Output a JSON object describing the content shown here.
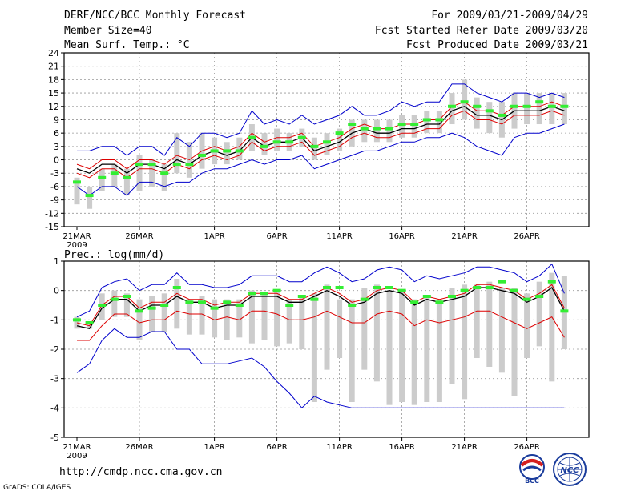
{
  "header": {
    "title": "DERF/NCC/BCC Monthly Forecast",
    "member_size": "Member Size=40",
    "variable": "Mean Surf. Temp.: °C",
    "period": "For 2009/03/21-2009/04/29",
    "fcst_start": "Fcst Started Refer Date 2009/03/20",
    "fcst_produced": "Fcst Produced Date 2009/03/21"
  },
  "footer": {
    "url": "http://cmdp.ncc.cma.gov.cn",
    "credit": "GrADS: COLA/IGES",
    "logos": [
      "BCC",
      "NCC"
    ]
  },
  "colors": {
    "bar": "#cccccc",
    "mean": "#000000",
    "spread_red": "#dd0000",
    "envelope_blue": "#0000cc",
    "green_marker": "#33ee33",
    "grid": "#999999"
  },
  "chart_data": [
    {
      "type": "line",
      "name": "temperature",
      "title": "Mean Surf. Temp.: °C",
      "ylim": [
        -15,
        24
      ],
      "yticks": [
        -15,
        -12,
        -9,
        -6,
        -3,
        0,
        3,
        6,
        9,
        12,
        15,
        18,
        21,
        24
      ],
      "ytick_labels": [
        "-15",
        "-12",
        "-9",
        "-6",
        "-3",
        "0",
        "3",
        "6",
        "9",
        "12",
        "15",
        "18",
        "21",
        "24"
      ],
      "x_tick_days": [
        0,
        5,
        11,
        16,
        21,
        26,
        31,
        36
      ],
      "x_tick_labels": [
        "21MAR",
        "26MAR",
        "1APR",
        "6APR",
        "11APR",
        "16APR",
        "21APR",
        "26APR"
      ],
      "x_year_label": "2009",
      "series": [
        {
          "name": "ensemble mean",
          "values": [
            -2,
            -3,
            -1,
            -1,
            -3,
            -1,
            -1,
            -2,
            0,
            -1,
            1,
            2,
            1,
            2,
            5,
            3,
            4,
            4,
            5,
            2,
            3,
            4,
            6,
            7,
            6,
            6,
            7,
            7,
            8,
            8,
            11,
            12,
            10,
            10,
            9,
            11,
            11,
            11,
            12,
            11
          ]
        },
        {
          "name": "upper spread",
          "values": [
            -1,
            -2,
            0,
            0,
            -2,
            0,
            0,
            -1,
            1,
            0,
            2,
            3,
            2,
            3,
            6,
            4,
            5,
            5,
            6,
            3,
            4,
            5,
            7,
            8,
            7,
            7,
            8,
            8,
            9,
            9,
            12,
            13,
            11,
            11,
            10,
            12,
            12,
            12,
            13,
            12
          ]
        },
        {
          "name": "lower spread",
          "values": [
            -3,
            -4,
            -2,
            -2,
            -4,
            -2,
            -2,
            -3,
            -1,
            -2,
            0,
            1,
            0,
            1,
            4,
            2,
            3,
            3,
            4,
            1,
            2,
            3,
            5,
            6,
            5,
            5,
            6,
            6,
            7,
            7,
            10,
            11,
            9,
            9,
            8,
            10,
            10,
            10,
            11,
            10
          ]
        },
        {
          "name": "member max",
          "values": [
            2,
            2,
            3,
            3,
            1,
            3,
            3,
            1,
            5,
            3,
            6,
            6,
            5,
            6,
            11,
            8,
            9,
            8,
            10,
            8,
            9,
            10,
            12,
            10,
            10,
            11,
            13,
            12,
            13,
            13,
            17,
            17,
            15,
            14,
            13,
            15,
            15,
            14,
            15,
            14
          ]
        },
        {
          "name": "member min",
          "values": [
            -6,
            -8,
            -6,
            -6,
            -8,
            -5,
            -5,
            -6,
            -5,
            -5,
            -3,
            -2,
            -2,
            -1,
            0,
            -1,
            0,
            0,
            1,
            -2,
            -1,
            0,
            1,
            2,
            2,
            3,
            4,
            4,
            5,
            5,
            6,
            5,
            3,
            2,
            1,
            5,
            6,
            6,
            7,
            8
          ]
        },
        {
          "name": "observed",
          "values": [
            -5,
            -8,
            -4,
            -3,
            -4,
            -1,
            -1,
            -3,
            -1,
            -1,
            1,
            2,
            2,
            2,
            5,
            3,
            4,
            4,
            5,
            3,
            4,
            6,
            8,
            7,
            7,
            7,
            8,
            8,
            9,
            9,
            12,
            13,
            12,
            11,
            10,
            12,
            12,
            13,
            12,
            12
          ]
        }
      ],
      "bar_ranges": [
        [
          -10,
          -4
        ],
        [
          -11,
          -6
        ],
        [
          -7,
          -2
        ],
        [
          -6,
          -1
        ],
        [
          -8,
          -2
        ],
        [
          -7,
          1
        ],
        [
          -6,
          0
        ],
        [
          -7,
          -1
        ],
        [
          -3,
          6
        ],
        [
          -4,
          4
        ],
        [
          -2,
          6
        ],
        [
          -1,
          5
        ],
        [
          -1,
          4
        ],
        [
          0,
          5
        ],
        [
          2,
          8
        ],
        [
          1,
          6
        ],
        [
          2,
          7
        ],
        [
          2,
          6
        ],
        [
          3,
          7
        ],
        [
          0,
          5
        ],
        [
          1,
          6
        ],
        [
          2,
          7
        ],
        [
          3,
          9
        ],
        [
          4,
          9
        ],
        [
          4,
          9
        ],
        [
          4,
          9
        ],
        [
          5,
          10
        ],
        [
          5,
          10
        ],
        [
          6,
          11
        ],
        [
          6,
          11
        ],
        [
          8,
          15
        ],
        [
          9,
          18
        ],
        [
          7,
          14
        ],
        [
          6,
          13
        ],
        [
          5,
          13
        ],
        [
          7,
          15
        ],
        [
          8,
          15
        ],
        [
          8,
          15
        ],
        [
          8,
          15
        ],
        [
          8,
          15
        ]
      ]
    },
    {
      "type": "line",
      "name": "precipitation",
      "title": "Prec.: log(mm/d)",
      "ylim": [
        -5,
        1
      ],
      "yticks": [
        -5,
        -4,
        -3,
        -2,
        -1,
        0,
        1
      ],
      "ytick_labels": [
        "-5",
        "-4",
        "-3",
        "-2",
        "-1",
        "0",
        "1"
      ],
      "x_tick_days": [
        0,
        5,
        11,
        16,
        21,
        26,
        31,
        36
      ],
      "x_tick_labels": [
        "21MAR",
        "26MAR",
        "1APR",
        "6APR",
        "11APR",
        "16APR",
        "21APR",
        "26APR"
      ],
      "x_year_label": "2009",
      "series": [
        {
          "name": "ensemble mean",
          "values": [
            -1.2,
            -1.3,
            -0.6,
            -0.3,
            -0.3,
            -0.7,
            -0.5,
            -0.5,
            -0.2,
            -0.4,
            -0.4,
            -0.6,
            -0.5,
            -0.5,
            -0.2,
            -0.2,
            -0.2,
            -0.4,
            -0.4,
            -0.2,
            0,
            -0.2,
            -0.5,
            -0.4,
            -0.1,
            0,
            -0.1,
            -0.5,
            -0.3,
            -0.4,
            -0.3,
            -0.2,
            0.1,
            0.1,
            0,
            -0.1,
            -0.4,
            -0.2,
            0.1,
            -0.7
          ]
        },
        {
          "name": "upper spread",
          "values": [
            -1.1,
            -1.2,
            -0.5,
            -0.2,
            -0.2,
            -0.6,
            -0.4,
            -0.4,
            -0.1,
            -0.3,
            -0.3,
            -0.5,
            -0.4,
            -0.4,
            -0.1,
            -0.1,
            -0.1,
            -0.3,
            -0.3,
            -0.1,
            0.1,
            -0.1,
            -0.4,
            -0.3,
            0,
            0.1,
            0,
            -0.4,
            -0.2,
            -0.3,
            -0.2,
            -0.1,
            0.2,
            0.2,
            0.1,
            0,
            -0.3,
            -0.1,
            0.2,
            -0.6
          ]
        },
        {
          "name": "lower spread",
          "values": [
            -1.7,
            -1.7,
            -1.2,
            -0.8,
            -0.8,
            -1.1,
            -1,
            -1,
            -0.7,
            -0.8,
            -0.8,
            -1,
            -0.9,
            -1,
            -0.7,
            -0.7,
            -0.8,
            -1,
            -1,
            -0.9,
            -0.7,
            -0.9,
            -1.1,
            -1.1,
            -0.8,
            -0.7,
            -0.8,
            -1.2,
            -1,
            -1.1,
            -1,
            -0.9,
            -0.7,
            -0.7,
            -0.9,
            -1.1,
            -1.3,
            -1.1,
            -0.9,
            -1.6
          ]
        },
        {
          "name": "member max",
          "values": [
            -0.9,
            -0.7,
            0.1,
            0.3,
            0.4,
            0,
            0.2,
            0.2,
            0.6,
            0.2,
            0.2,
            0.1,
            0.1,
            0.2,
            0.5,
            0.5,
            0.5,
            0.3,
            0.3,
            0.6,
            0.8,
            0.6,
            0.3,
            0.4,
            0.7,
            0.8,
            0.7,
            0.3,
            0.5,
            0.4,
            0.5,
            0.6,
            0.8,
            0.8,
            0.7,
            0.6,
            0.3,
            0.5,
            0.9,
            -0.1
          ]
        },
        {
          "name": "member min",
          "values": [
            -2.8,
            -2.5,
            -1.7,
            -1.3,
            -1.6,
            -1.6,
            -1.4,
            -1.4,
            -2,
            -2,
            -2.5,
            -2.5,
            -2.5,
            -2.4,
            -2.3,
            -2.6,
            -3.1,
            -3.5,
            -4,
            -3.6,
            -3.8,
            -3.9,
            -4,
            -4,
            -4,
            -4,
            -4,
            -4,
            -4,
            -4,
            -4,
            -4,
            -4,
            -4,
            -4,
            -4,
            -4,
            -4,
            -4,
            -4
          ]
        },
        {
          "name": "observed",
          "values": [
            -1,
            -1.1,
            -0.5,
            -0.3,
            -0.2,
            -0.7,
            -0.6,
            -0.5,
            0.1,
            -0.4,
            -0.4,
            -0.6,
            -0.4,
            -0.5,
            -0.1,
            -0.1,
            0,
            -0.5,
            -0.2,
            -0.3,
            0.1,
            0.1,
            -0.5,
            -0.3,
            0.1,
            0.1,
            0,
            -0.4,
            -0.2,
            -0.4,
            -0.2,
            0,
            0.1,
            0.1,
            0.3,
            0,
            -0.3,
            -0.2,
            0.3,
            -0.7
          ]
        }
      ],
      "bar_ranges": [
        [
          -1.3,
          -0.9
        ],
        [
          -1.3,
          -1.1
        ],
        [
          -1,
          -0.1
        ],
        [
          -0.9,
          0
        ],
        [
          -0.9,
          -0.1
        ],
        [
          -1.7,
          -0.3
        ],
        [
          -1.4,
          -0.2
        ],
        [
          -1.4,
          -0.1
        ],
        [
          -1.3,
          0.4
        ],
        [
          -1.5,
          -0.3
        ],
        [
          -1.5,
          -0.2
        ],
        [
          -1.6,
          -0.3
        ],
        [
          -1.7,
          -0.3
        ],
        [
          -1.6,
          -0.3
        ],
        [
          -1.8,
          0
        ],
        [
          -1.7,
          -0.1
        ],
        [
          -1.9,
          0
        ],
        [
          -1.8,
          -0.3
        ],
        [
          -2,
          -0.2
        ],
        [
          -3.8,
          -0.1
        ],
        [
          -2.7,
          0.2
        ],
        [
          -2.3,
          -0.3
        ],
        [
          -3.8,
          -0.3
        ],
        [
          -2.7,
          0.1
        ],
        [
          -3.1,
          0.2
        ],
        [
          -3.9,
          0
        ],
        [
          -3.8,
          0
        ],
        [
          -3.9,
          -0.3
        ],
        [
          -3.8,
          -0.2
        ],
        [
          -3.8,
          -0.3
        ],
        [
          -3.2,
          0.1
        ],
        [
          -3.7,
          0.2
        ],
        [
          -2.3,
          0.2
        ],
        [
          -2.6,
          0.3
        ],
        [
          -2.8,
          0.1
        ],
        [
          -3.6,
          0.1
        ],
        [
          -2.3,
          -0.1
        ],
        [
          -1.9,
          0.3
        ],
        [
          -3.1,
          0.6
        ],
        [
          -2,
          0.5
        ]
      ]
    }
  ]
}
